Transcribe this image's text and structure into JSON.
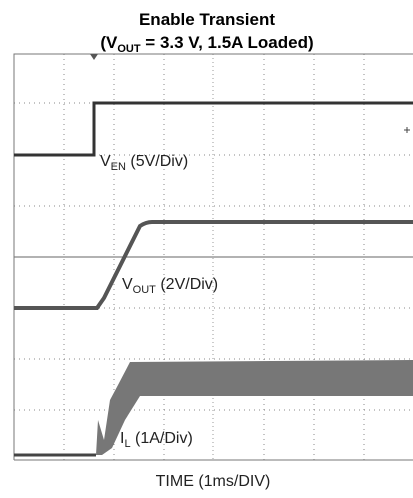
{
  "title": "Enable Transient",
  "subtitle": [
    "(V",
    "OUT",
    " = 3.3 V, 1.5A Loaded)"
  ],
  "traces": [
    [
      "V",
      "EN",
      " (5V/Div)"
    ],
    [
      "V",
      "OUT",
      " (2V/Div)"
    ],
    [
      "I",
      "L",
      " (1A/Div)"
    ]
  ],
  "x_label": "TIME (1ms/DIV)"
}
